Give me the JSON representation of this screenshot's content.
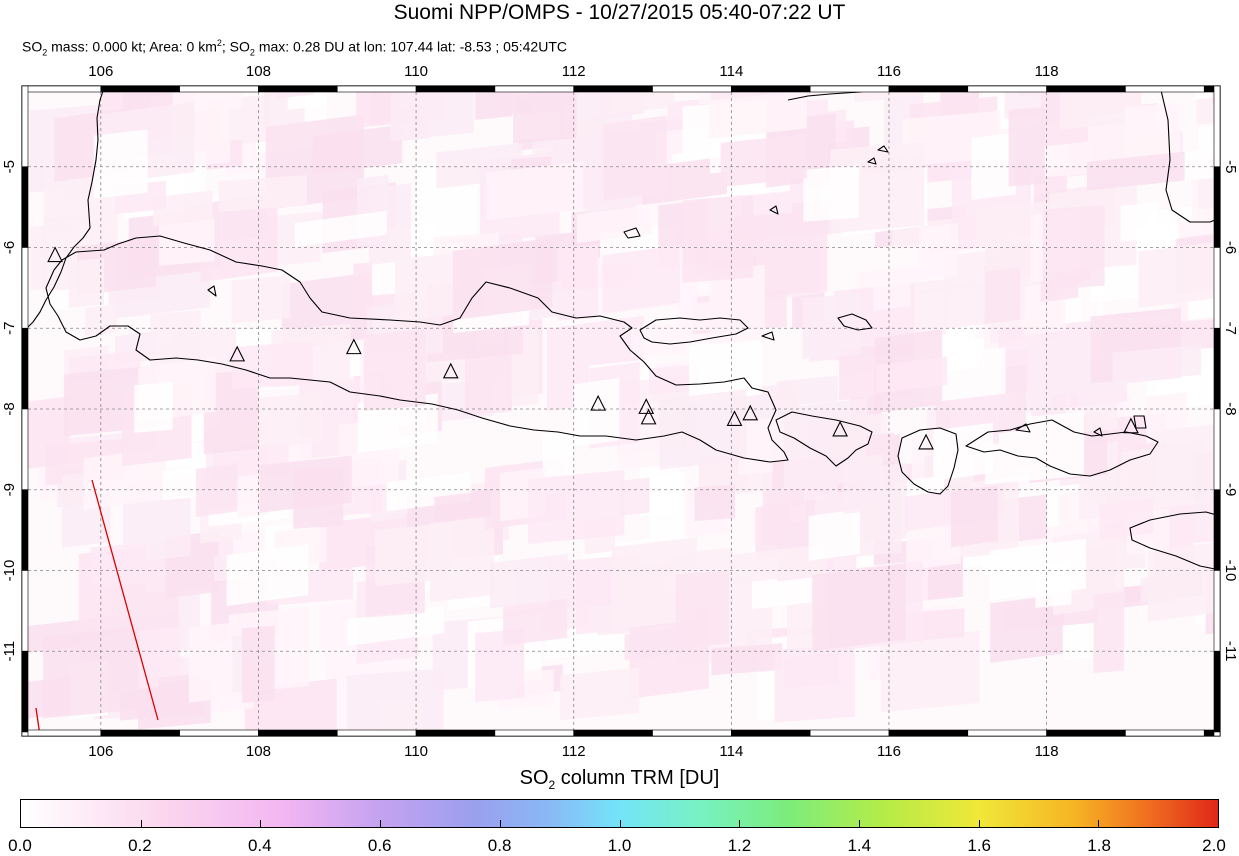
{
  "header": {
    "title": "Suomi NPP/OMPS - 10/27/2015 05:40-07:22 UT",
    "subtitle": {
      "so2_mass_label": "SO",
      "so2_mass_rest": " mass: 0.000 kt; Area: 0 km",
      "area_unit_sup": "2",
      "so2_max_label": "; SO",
      "so2_max_rest": " max: 0.28 DU at lon: 107.44 lat: -8.53 ; 05:42UTC",
      "sub2": "2"
    }
  },
  "map": {
    "lon_range": [
      105.0,
      120.2
    ],
    "lat_range": [
      -12.05,
      -4.0
    ],
    "lon_ticks": [
      "106",
      "108",
      "110",
      "112",
      "114",
      "116",
      "118"
    ],
    "lat_ticks": [
      "-5",
      "-6",
      "-7",
      "-8",
      "-9",
      "-10",
      "-11"
    ],
    "colors": {
      "land_outline": "#000000",
      "frame": "#000000",
      "grid": "#888888",
      "swath_edge": "#dd0000"
    },
    "volcanoes": [
      {
        "lon": 105.42,
        "lat": -6.1
      },
      {
        "lon": 107.73,
        "lat": -7.33
      },
      {
        "lon": 109.21,
        "lat": -7.24
      },
      {
        "lon": 110.44,
        "lat": -7.54
      },
      {
        "lon": 112.31,
        "lat": -7.94
      },
      {
        "lon": 112.92,
        "lat": -7.98
      },
      {
        "lon": 112.95,
        "lat": -8.11
      },
      {
        "lon": 114.04,
        "lat": -8.13
      },
      {
        "lon": 114.24,
        "lat": -8.06
      },
      {
        "lon": 115.38,
        "lat": -8.26
      },
      {
        "lon": 116.47,
        "lat": -8.42
      },
      {
        "lon": 119.07,
        "lat": -8.22
      }
    ]
  },
  "colorbar": {
    "title_prefix": "SO",
    "title_sub": "2",
    "title_suffix": " column TRM [DU]",
    "range": [
      0.0,
      2.0
    ],
    "tick_labels": [
      "0.0",
      "0.2",
      "0.4",
      "0.6",
      "0.8",
      "1.0",
      "1.2",
      "1.4",
      "1.6",
      "1.8",
      "2.0"
    ]
  }
}
